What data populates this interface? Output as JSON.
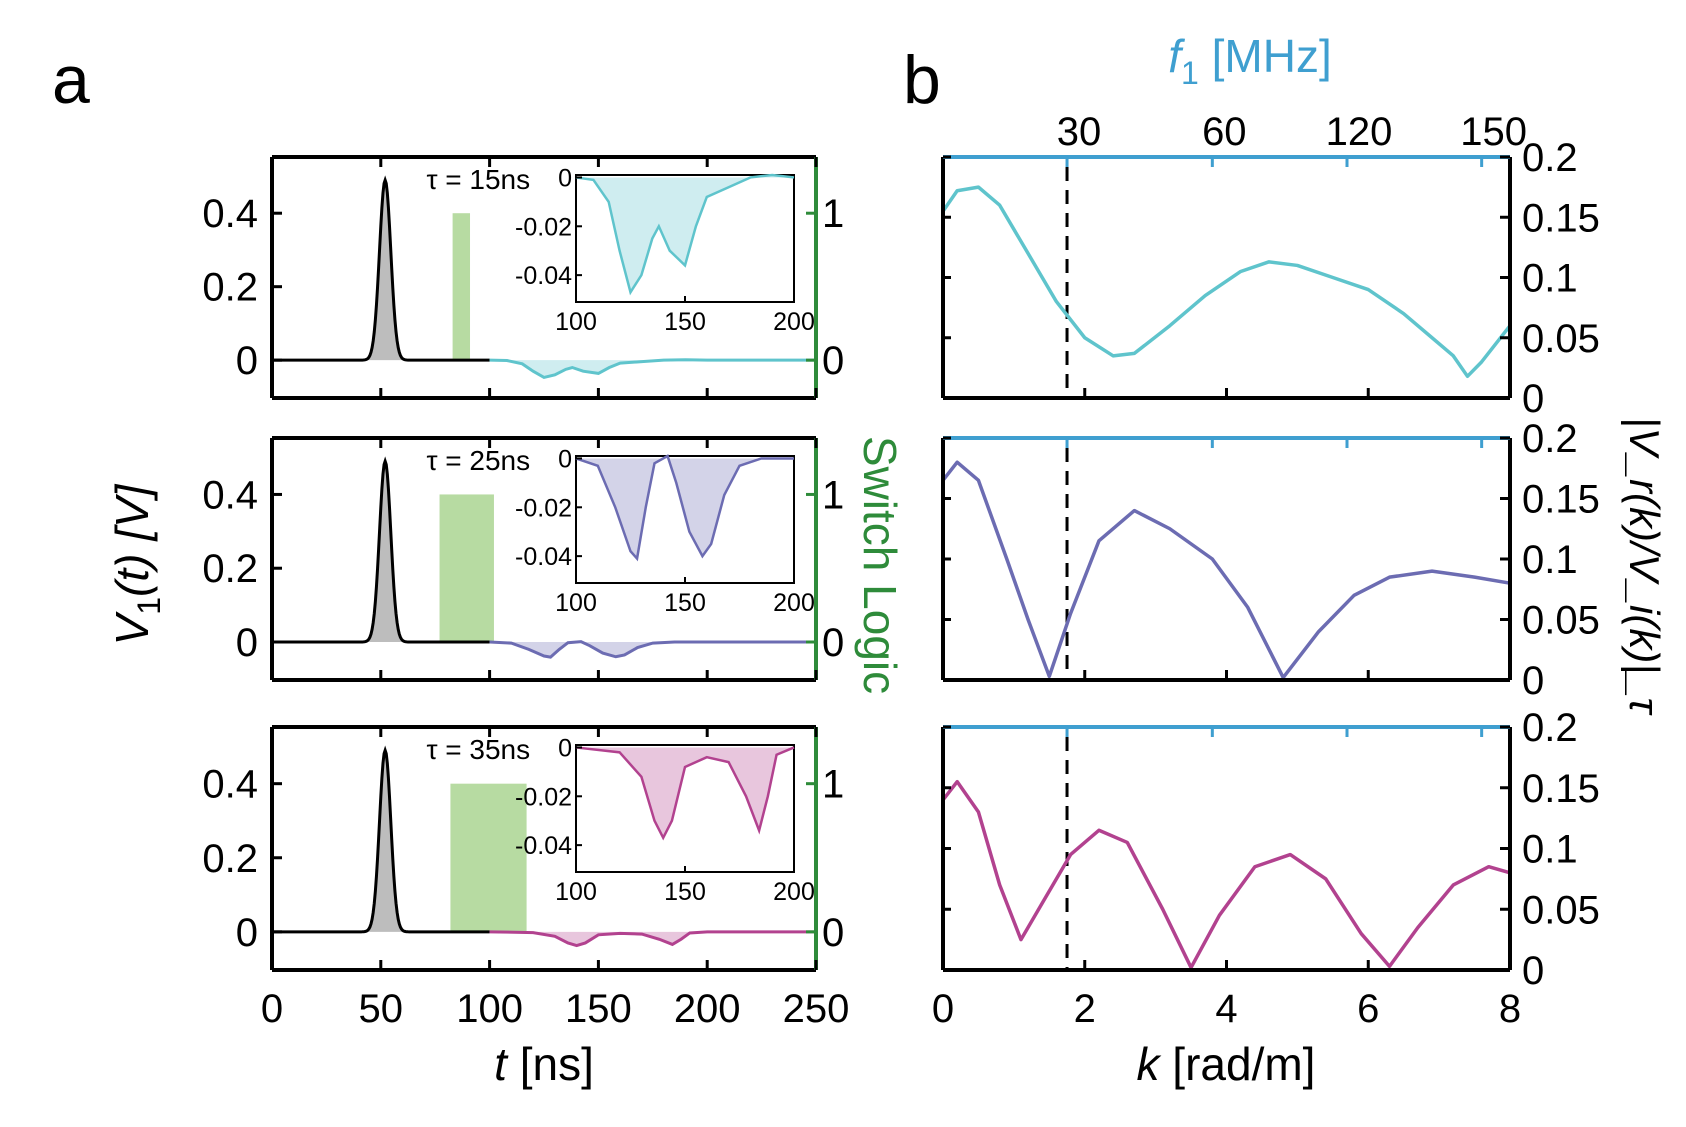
{
  "chart_data": [
    {
      "panel_label": "a",
      "type": "line",
      "xlabel_var": "t",
      "xlabel_unit": " [ns]",
      "ylabel_var": "V",
      "ylabel_sub": "1",
      "ylabel_rest": "(t)  [V]",
      "y2label": "Switch Logic",
      "xlim": [
        0,
        250
      ],
      "ylim": [
        -0.103,
        0.553
      ],
      "xticks": [
        "0",
        "50",
        "100",
        "150",
        "200",
        "250"
      ],
      "xtick_values": [
        0,
        50,
        100,
        150,
        200,
        250
      ],
      "yticks": [
        "0",
        "0.2",
        "0.4"
      ],
      "ytick_values": [
        0,
        0.2,
        0.4
      ],
      "y2ticks": [
        "0",
        "1"
      ],
      "y2_one_level": 0.4,
      "colors": {
        "pulse": "#000000",
        "pulse_fill": "#bdbdbd",
        "switch": "#2e8b3a",
        "switch_fill": "#b7dba2"
      },
      "pulse": {
        "center": 52,
        "peak": 0.49,
        "sigma": 2.6
      },
      "inset": {
        "xlim": [
          100,
          200
        ],
        "ylim": [
          -0.051,
          0.001
        ],
        "xticks": [
          "100",
          "150",
          "200"
        ],
        "xtick_values": [
          100,
          150,
          200
        ],
        "yticks": [
          "0",
          "-0.02",
          "-0.04"
        ],
        "ytick_values": [
          0,
          -0.02,
          -0.04
        ]
      },
      "subplots": [
        {
          "tau_label": "τ = 15ns",
          "color": "#5fc4cc",
          "switch_on": [
            83,
            91
          ],
          "reflection": [
            [
              100,
              0
            ],
            [
              108,
              -0.001
            ],
            [
              115,
              -0.01
            ],
            [
              120,
              -0.03
            ],
            [
              125,
              -0.047
            ],
            [
              130,
              -0.04
            ],
            [
              135,
              -0.025
            ],
            [
              138,
              -0.02
            ],
            [
              143,
              -0.03
            ],
            [
              150,
              -0.036
            ],
            [
              155,
              -0.02
            ],
            [
              160,
              -0.008
            ],
            [
              170,
              -0.004
            ],
            [
              180,
              0
            ],
            [
              190,
              0.001
            ],
            [
              200,
              0
            ],
            [
              250,
              0
            ]
          ]
        },
        {
          "tau_label": "τ = 25ns",
          "color": "#6c6cb2",
          "switch_on": [
            77,
            102
          ],
          "reflection": [
            [
              100,
              0
            ],
            [
              110,
              -0.003
            ],
            [
              118,
              -0.02
            ],
            [
              125,
              -0.038
            ],
            [
              128,
              -0.041
            ],
            [
              132,
              -0.02
            ],
            [
              136,
              -0.002
            ],
            [
              142,
              0.001
            ],
            [
              146,
              -0.01
            ],
            [
              152,
              -0.03
            ],
            [
              158,
              -0.04
            ],
            [
              162,
              -0.035
            ],
            [
              168,
              -0.015
            ],
            [
              175,
              -0.003
            ],
            [
              185,
              0
            ],
            [
              200,
              0
            ],
            [
              250,
              0
            ]
          ]
        },
        {
          "tau_label": "τ = 35ns",
          "color": "#b2428f",
          "switch_on": [
            82,
            117
          ],
          "reflection": [
            [
              100,
              0
            ],
            [
              120,
              -0.002
            ],
            [
              130,
              -0.012
            ],
            [
              136,
              -0.03
            ],
            [
              140,
              -0.037
            ],
            [
              144,
              -0.03
            ],
            [
              150,
              -0.008
            ],
            [
              160,
              -0.004
            ],
            [
              170,
              -0.006
            ],
            [
              178,
              -0.02
            ],
            [
              184,
              -0.034
            ],
            [
              188,
              -0.02
            ],
            [
              192,
              -0.003
            ],
            [
              200,
              0
            ],
            [
              250,
              0
            ]
          ]
        }
      ]
    },
    {
      "panel_label": "b",
      "type": "line",
      "xlabel_var": "k",
      "xlabel_unit": " [rad/m]",
      "ylabel": "|V_r(k)/V_i(k)|_τ",
      "x2label_var": "f",
      "x2label_sub": "1",
      "x2label_unit": " [MHz]",
      "xlim": [
        0,
        8
      ],
      "ylim": [
        0,
        0.2
      ],
      "xticks": [
        "0",
        "2",
        "4",
        "6",
        "8"
      ],
      "xtick_values": [
        0,
        2,
        4,
        6,
        8
      ],
      "yticks": [
        "0",
        "0.05",
        "0.1",
        "0.15",
        "0.2"
      ],
      "ytick_values": [
        0,
        0.05,
        0.1,
        0.15,
        0.2
      ],
      "x2ticks": [
        "30",
        "60",
        "120",
        "150"
      ],
      "x2tick_k_positions": [
        1.75,
        3.8,
        5.7,
        7.6
      ],
      "dashed_line_k": 1.75,
      "colors": {
        "top_axis": "#3f9fd0"
      },
      "series": [
        {
          "color": "#5fc4cc",
          "points": [
            [
              0,
              0.155
            ],
            [
              0.2,
              0.172
            ],
            [
              0.5,
              0.175
            ],
            [
              0.8,
              0.16
            ],
            [
              1.2,
              0.12
            ],
            [
              1.6,
              0.08
            ],
            [
              2,
              0.05
            ],
            [
              2.4,
              0.035
            ],
            [
              2.7,
              0.037
            ],
            [
              3.2,
              0.06
            ],
            [
              3.7,
              0.085
            ],
            [
              4.2,
              0.105
            ],
            [
              4.6,
              0.113
            ],
            [
              5,
              0.11
            ],
            [
              5.5,
              0.1
            ],
            [
              6,
              0.09
            ],
            [
              6.5,
              0.07
            ],
            [
              6.9,
              0.05
            ],
            [
              7.2,
              0.035
            ],
            [
              7.4,
              0.018
            ],
            [
              7.6,
              0.03
            ],
            [
              8,
              0.06
            ]
          ]
        },
        {
          "color": "#6c6cb2",
          "points": [
            [
              0,
              0.165
            ],
            [
              0.2,
              0.18
            ],
            [
              0.5,
              0.165
            ],
            [
              0.9,
              0.1
            ],
            [
              1.2,
              0.05
            ],
            [
              1.5,
              0.003
            ],
            [
              1.8,
              0.055
            ],
            [
              2.2,
              0.115
            ],
            [
              2.7,
              0.14
            ],
            [
              3.2,
              0.125
            ],
            [
              3.8,
              0.1
            ],
            [
              4.3,
              0.06
            ],
            [
              4.8,
              0.002
            ],
            [
              5.3,
              0.04
            ],
            [
              5.8,
              0.07
            ],
            [
              6.3,
              0.085
            ],
            [
              6.9,
              0.09
            ],
            [
              7.5,
              0.085
            ],
            [
              8,
              0.08
            ]
          ]
        },
        {
          "color": "#b2428f",
          "points": [
            [
              0,
              0.14
            ],
            [
              0.2,
              0.155
            ],
            [
              0.5,
              0.13
            ],
            [
              0.8,
              0.07
            ],
            [
              1.1,
              0.025
            ],
            [
              1.4,
              0.055
            ],
            [
              1.8,
              0.095
            ],
            [
              2.2,
              0.115
            ],
            [
              2.6,
              0.105
            ],
            [
              3.1,
              0.05
            ],
            [
              3.5,
              0.002
            ],
            [
              3.9,
              0.045
            ],
            [
              4.4,
              0.085
            ],
            [
              4.9,
              0.095
            ],
            [
              5.4,
              0.075
            ],
            [
              5.9,
              0.03
            ],
            [
              6.3,
              0.003
            ],
            [
              6.7,
              0.035
            ],
            [
              7.2,
              0.07
            ],
            [
              7.7,
              0.085
            ],
            [
              8,
              0.08
            ]
          ]
        }
      ]
    }
  ]
}
